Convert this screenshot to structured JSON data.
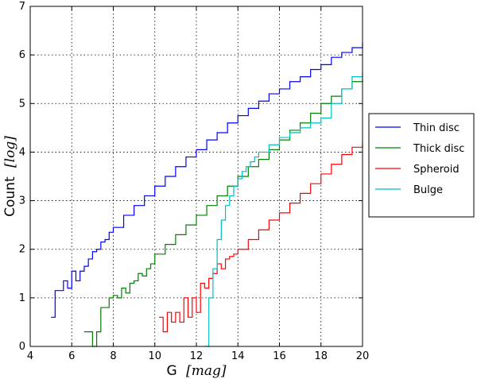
{
  "chart_data": {
    "type": "line",
    "step": true,
    "xlabel_main": "G",
    "xlabel_unit": "[mag]",
    "ylabel_main": "Count",
    "ylabel_unit": "[log]",
    "xlim": [
      4,
      20
    ],
    "ylim": [
      0,
      7
    ],
    "xticks": [
      4,
      6,
      8,
      10,
      12,
      14,
      16,
      18,
      20
    ],
    "yticks": [
      0,
      1,
      2,
      3,
      4,
      5,
      6,
      7
    ],
    "grid": true,
    "legend_position": "right",
    "series": [
      {
        "name": "Thin disc",
        "color": "#0000ff",
        "x": [
          5.0,
          5.2,
          5.4,
          5.6,
          5.8,
          6.0,
          6.2,
          6.4,
          6.6,
          6.8,
          7.0,
          7.2,
          7.4,
          7.6,
          7.8,
          8.0,
          8.5,
          9.0,
          9.5,
          10.0,
          10.5,
          11.0,
          11.5,
          12.0,
          12.5,
          13.0,
          13.5,
          14.0,
          14.5,
          15.0,
          15.5,
          16.0,
          16.5,
          17.0,
          17.5,
          18.0,
          18.5,
          19.0,
          19.5,
          20.0
        ],
        "y": [
          0.6,
          1.15,
          1.15,
          1.35,
          1.2,
          1.55,
          1.35,
          1.55,
          1.65,
          1.8,
          1.95,
          2.0,
          2.15,
          2.2,
          2.35,
          2.45,
          2.7,
          2.9,
          3.1,
          3.3,
          3.5,
          3.7,
          3.9,
          4.05,
          4.25,
          4.4,
          4.6,
          4.75,
          4.9,
          5.05,
          5.2,
          5.3,
          5.45,
          5.55,
          5.7,
          5.8,
          5.95,
          6.05,
          6.15,
          6.25
        ]
      },
      {
        "name": "Thick disc",
        "color": "#008000",
        "x": [
          6.6,
          6.8,
          7.0,
          7.2,
          7.4,
          7.6,
          7.8,
          8.0,
          8.2,
          8.4,
          8.6,
          8.8,
          9.0,
          9.2,
          9.4,
          9.6,
          9.8,
          10.0,
          10.5,
          11.0,
          11.5,
          12.0,
          12.5,
          13.0,
          13.5,
          14.0,
          14.5,
          15.0,
          15.5,
          16.0,
          16.5,
          17.0,
          17.5,
          18.0,
          18.5,
          19.0,
          19.5,
          20.0
        ],
        "y": [
          0.3,
          0.3,
          0.0,
          0.3,
          0.8,
          0.8,
          1.0,
          1.05,
          1.0,
          1.2,
          1.1,
          1.3,
          1.35,
          1.5,
          1.45,
          1.6,
          1.7,
          1.9,
          2.1,
          2.3,
          2.5,
          2.7,
          2.9,
          3.1,
          3.3,
          3.5,
          3.7,
          3.85,
          4.05,
          4.25,
          4.45,
          4.6,
          4.8,
          5.0,
          5.15,
          5.3,
          5.45,
          5.5
        ]
      },
      {
        "name": "Spheroid",
        "color": "#ff0000",
        "x": [
          10.2,
          10.4,
          10.6,
          10.8,
          11.0,
          11.2,
          11.4,
          11.6,
          11.8,
          12.0,
          12.2,
          12.4,
          12.6,
          12.8,
          13.0,
          13.2,
          13.4,
          13.6,
          13.8,
          14.0,
          14.5,
          15.0,
          15.5,
          16.0,
          16.5,
          17.0,
          17.5,
          18.0,
          18.5,
          19.0,
          19.5,
          20.0
        ],
        "y": [
          0.6,
          0.3,
          0.7,
          0.5,
          0.7,
          0.5,
          1.0,
          0.6,
          1.0,
          0.7,
          1.3,
          1.2,
          1.4,
          1.5,
          1.7,
          1.6,
          1.8,
          1.85,
          1.9,
          2.0,
          2.2,
          2.4,
          2.6,
          2.75,
          2.95,
          3.15,
          3.35,
          3.55,
          3.75,
          3.95,
          4.1,
          4.2
        ]
      },
      {
        "name": "Bulge",
        "color": "#00bfbf",
        "x": [
          12.4,
          12.6,
          12.8,
          13.0,
          13.2,
          13.4,
          13.6,
          13.8,
          14.0,
          14.2,
          14.4,
          14.6,
          14.8,
          15.0,
          15.5,
          16.0,
          16.5,
          17.0,
          17.5,
          18.0,
          18.5,
          19.0,
          19.5,
          20.0
        ],
        "y": [
          0.0,
          1.0,
          1.6,
          2.2,
          2.6,
          2.9,
          3.1,
          3.3,
          3.45,
          3.6,
          3.7,
          3.8,
          3.9,
          4.0,
          4.15,
          4.3,
          4.4,
          4.5,
          4.6,
          4.7,
          5.0,
          5.3,
          5.55,
          5.65
        ]
      }
    ]
  }
}
